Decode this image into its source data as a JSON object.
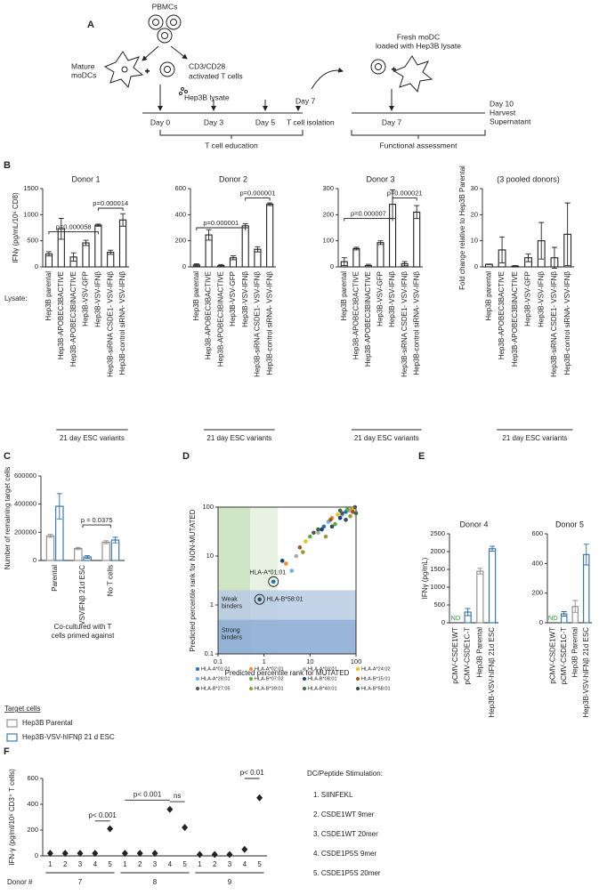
{
  "panel_labels": {
    "a": "A",
    "b": "B",
    "c": "C",
    "d": "D",
    "e": "E",
    "f": "F"
  },
  "diagram": {
    "pbmcs": "PBMCs",
    "mature_modcs": [
      "Mature",
      "moDCs"
    ],
    "activated_t_cells": [
      "CD3/CD28",
      "activated T cells"
    ],
    "lysate": "Hep3B lysate",
    "days": [
      "Day 0",
      "Day 3",
      "Day 5"
    ],
    "day7": "Day 7",
    "isolation": "T cell isolation",
    "education": "T cell education",
    "fresh_modc": [
      "Fresh moDC",
      "loaded with Hep3B lysate"
    ],
    "day7_b": "Day 7",
    "harvest": [
      "Day 10",
      "Harvest",
      "Supernatant"
    ],
    "functional": "Functional assessment"
  },
  "lysate_label": "Lysate:",
  "stimulation": {
    "title": "DC/Peptide Stimulation:",
    "items": [
      "1. SIINFEKL",
      "2. CSDE1WT 9mer",
      "3. CSDE1WT 20mer",
      "4. CSDE1P5S 9mer",
      "5. CSDE1P5S 20mer"
    ]
  },
  "chart_data": [
    {
      "type": "bar",
      "title": "Donor 1",
      "ylabel": "IFNγ (pg/mL/10⁶ CD8)",
      "categories": [
        "Hep3B parental",
        "Hep3B-APOBEC3BACTIVE",
        "Hep3B-APOBEC3BINACTIVE",
        "Hep3B-VSV-GFP",
        "Hep3B-VSV-IFNβ",
        "Hep3B-siRNA CSDE1- VSV-IFNβ",
        "Hep3B-control siRNA- VSV-IFNβ"
      ],
      "series": [
        {
          "color": "#222222",
          "values": [
            250,
            730,
            190,
            460,
            800,
            280,
            900
          ],
          "errors": [
            40,
            200,
            80,
            50,
            20,
            40,
            120
          ]
        }
      ],
      "ylim": [
        0,
        1500
      ],
      "yticks": [
        0,
        500,
        1000,
        1500
      ],
      "annotations": [
        "p=0.000058",
        "p=0.000014"
      ],
      "group_label": "21 day ESC variants"
    },
    {
      "type": "bar",
      "title": "Donor 2",
      "categories": [
        "Hep3B parental",
        "Hep3B-APOBEC3BACTIVE",
        "Hep3B-APOBEC3BINACTIVE",
        "Hep3B-VSV-GFP",
        "Hep3B-VSV-IFNβ",
        "Hep3B-siRNA CSDE1- VSV-IFNβ",
        "Hep3B-control siRNA- VSV-IFNβ"
      ],
      "series": [
        {
          "color": "#222222",
          "values": [
            15,
            245,
            10,
            70,
            315,
            135,
            480
          ],
          "errors": [
            8,
            40,
            8,
            15,
            15,
            20,
            10
          ]
        }
      ],
      "ylim": [
        0,
        600
      ],
      "yticks": [
        0,
        200,
        400,
        600
      ],
      "annotations": [
        "p=0.000001",
        "p=0.000001"
      ],
      "group_label": "21 day ESC variants"
    },
    {
      "type": "bar",
      "title": "Donor 3",
      "categories": [
        "Hep3B parental",
        "Hep3B-APOBEC3BACTIVE",
        "Hep3B-APOBEC3BINACTIVE",
        "Hep3B-VSV-GFP",
        "Hep3B-VSV-IFNβ",
        "Hep3B-siRNA CSDE1- VSV-IFNβ",
        "Hep3B-control siRNA- VSV-IFNβ"
      ],
      "series": [
        {
          "color": "#222222",
          "values": [
            20,
            70,
            5,
            93,
            240,
            12,
            210
          ],
          "errors": [
            15,
            5,
            5,
            7,
            55,
            8,
            25
          ]
        }
      ],
      "ylim": [
        0,
        300
      ],
      "yticks": [
        0,
        100,
        200,
        300
      ],
      "annotations": [
        "p=0.000007",
        "p=0.000021"
      ],
      "group_label": "21 day ESC variants"
    },
    {
      "type": "bar",
      "title": "(3 pooled donors)",
      "ylabel": "Fold change relative to Hep3B Parental",
      "categories": [
        "Hep3B parental",
        "Hep3B-APOBEC3BACTIVE",
        "Hep3B-APOBEC3BINACTIVE",
        "Hep3B-VSV-GFP",
        "Hep3B-VSV-IFNβ",
        "Hep3B-siRNA CSDE1- VSV-IFNβ",
        "Hep3B-control siRNA- VSV-IFNβ"
      ],
      "series": [
        {
          "color": "#222222",
          "values": [
            1,
            6.5,
            0.3,
            3.5,
            10,
            3.5,
            12.5
          ],
          "errors": [
            0.1,
            5,
            0.2,
            1.5,
            7,
            4,
            12
          ]
        }
      ],
      "ylim": [
        0,
        30
      ],
      "yticks": [
        0,
        10,
        20,
        30
      ],
      "group_label": "21 day ESC variants"
    },
    {
      "type": "bar",
      "ylabel": "Number of remaining target cells",
      "xlabel": [
        "Co-cultured with T",
        "cells primed against"
      ],
      "categories": [
        "Parental",
        "VSVIFNβ 21d ESC",
        "No T cells"
      ],
      "series": [
        {
          "name": "Hep3B Parental",
          "color": "#8a8a8a",
          "values": [
            175000,
            85000,
            130000
          ],
          "errors": [
            10000,
            8000,
            10000
          ]
        },
        {
          "name": "Hep3B-VSV-hIFNβ 21 d ESC",
          "color": "#2e6da4",
          "values": [
            385000,
            25000,
            145000
          ],
          "errors": [
            90000,
            10000,
            20000
          ]
        }
      ],
      "ylim": [
        0,
        600000
      ],
      "yticks": [
        0,
        200000,
        400000,
        600000
      ],
      "annotations": [
        "p = 0.0375"
      ],
      "legend_title": "Target cells"
    },
    {
      "type": "scatter",
      "xlabel": "Predicted percentile rank for MUTATED",
      "ylabel": "Predicted percentile rank for NON-MUTATED",
      "log": true,
      "xlim": [
        0.1,
        100
      ],
      "ylim": [
        0.1,
        100
      ],
      "xticks": [
        0.1,
        1,
        10,
        100
      ],
      "yticks": [
        0.1,
        1,
        10,
        100
      ],
      "thresholds": {
        "strong": 0.5,
        "weak": 2
      },
      "regions": [
        [
          "Weak",
          "binders"
        ],
        [
          "Strong",
          "binders"
        ]
      ],
      "annotations": [
        "HLA-A*01:01",
        "HLA-B*58:01"
      ],
      "series": [
        {
          "name": "HLA-A*01:01",
          "color": "#1f6fb4",
          "x": [
            1.6,
            20,
            60
          ],
          "values": [
            3,
            40,
            80
          ]
        },
        {
          "name": "HLA-A*02:01",
          "color": "#f08a24",
          "x": [
            3,
            30,
            80
          ],
          "values": [
            7,
            60,
            90
          ]
        },
        {
          "name": "HLA-A*03:01",
          "color": "#aaaaaa",
          "x": [
            5,
            15,
            70
          ],
          "values": [
            10,
            30,
            85
          ]
        },
        {
          "name": "HLA-A*24:02",
          "color": "#e8c020",
          "x": [
            8,
            40,
            90
          ],
          "values": [
            20,
            70,
            95
          ]
        },
        {
          "name": "HLA-A*26:01",
          "color": "#6fb1e0",
          "x": [
            4,
            25,
            50
          ],
          "values": [
            5,
            50,
            70
          ]
        },
        {
          "name": "HLA-B*07:02",
          "color": "#5aa84a",
          "x": [
            10,
            35,
            65
          ],
          "values": [
            25,
            45,
            90
          ]
        },
        {
          "name": "HLA-B*08:01",
          "color": "#1c3f7a",
          "x": [
            2.5,
            18,
            45
          ],
          "values": [
            8,
            35,
            60
          ]
        },
        {
          "name": "HLA-B*15:01",
          "color": "#a0522d",
          "x": [
            6,
            28,
            85
          ],
          "values": [
            15,
            55,
            80
          ]
        },
        {
          "name": "HLA-B*27:05",
          "color": "#555555",
          "x": [
            12,
            50,
            95
          ],
          "values": [
            30,
            75,
            100
          ]
        },
        {
          "name": "HLA-B*39:01",
          "color": "#9a9a3a",
          "x": [
            7,
            22,
            75
          ],
          "values": [
            12,
            25,
            65
          ]
        },
        {
          "name": "HLA-B*40:01",
          "color": "#3d6b3d",
          "x": [
            15,
            45,
            100
          ],
          "values": [
            35,
            85,
            75
          ]
        },
        {
          "name": "HLA-B*58:01",
          "color": "#2f5050",
          "x": [
            0.8,
            30,
            60
          ],
          "values": [
            1.3,
            40,
            55
          ]
        }
      ]
    },
    {
      "type": "bar",
      "title": "Donor 4",
      "ylabel": "IFNγ (pg/mL)",
      "categories": [
        "pCMV-CSDE1WT",
        "pCMV-CSDE1C-T",
        "Hep3B Parental",
        "Hep3B-VSV-hIFNβ 21d ESC"
      ],
      "series": [
        {
          "colors": [
            "#2e6da4",
            "#2e6da4",
            "#8a8a8a",
            "#2e6da4"
          ],
          "values": [
            null,
            300,
            1450,
            2080
          ],
          "errors": [
            null,
            100,
            80,
            70
          ],
          "value_labels": [
            "ND",
            null,
            null,
            null
          ]
        }
      ],
      "ylim": [
        0,
        2500
      ],
      "yticks": [
        0,
        500,
        1000,
        1500,
        2000,
        2500
      ]
    },
    {
      "type": "bar",
      "title": "Donor 5",
      "categories": [
        "pCMV-CSDE1WT",
        "pCMV-CSDE1C-T",
        "Hep3B Parental",
        "Hep3B-VSV-hIFNβ 21d ESC"
      ],
      "series": [
        {
          "colors": [
            "#2e6da4",
            "#2e6da4",
            "#8a8a8a",
            "#2e6da4"
          ],
          "values": [
            null,
            60,
            110,
            460
          ],
          "errors": [
            null,
            15,
            40,
            70
          ],
          "value_labels": [
            "ND",
            null,
            null,
            null
          ]
        }
      ],
      "ylim": [
        0,
        600
      ],
      "yticks": [
        0,
        200,
        400,
        600
      ]
    },
    {
      "type": "dot",
      "ylabel": "IFN-γ (pg/ml/10⁶ CD3⁺ T cells)",
      "xlabel": "Donor #",
      "categories": [
        "1",
        "2",
        "3",
        "4",
        "5"
      ],
      "series": [
        {
          "name": "7",
          "values": [
            20,
            20,
            20,
            20,
            210
          ]
        },
        {
          "name": "8",
          "values": [
            20,
            20,
            20,
            360,
            220
          ]
        },
        {
          "name": "9",
          "values": [
            10,
            10,
            10,
            50,
            450
          ]
        }
      ],
      "ylim": [
        0,
        600
      ],
      "yticks": [
        0,
        200,
        400,
        600
      ],
      "annotations": [
        "p< 0.001",
        "p< 0.001",
        "ns",
        "p< 0.01"
      ]
    }
  ]
}
